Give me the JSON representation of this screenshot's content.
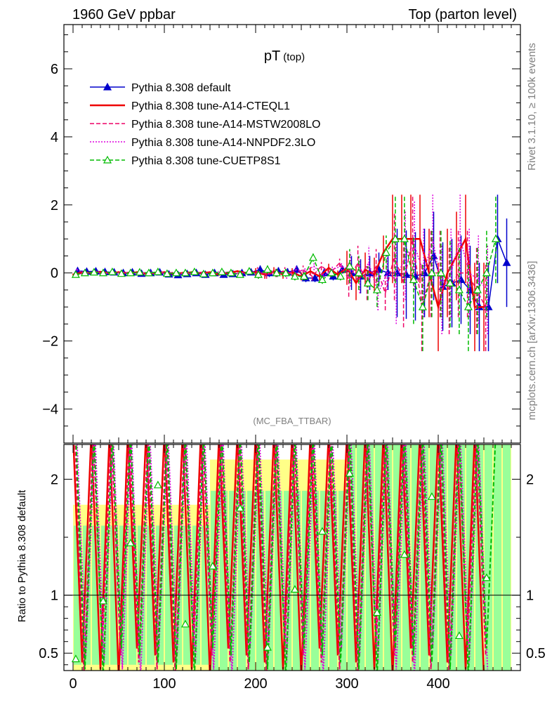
{
  "header": {
    "left": "1960 GeV ppbar",
    "right": "Top (parton level)"
  },
  "side": {
    "rivet": "Rivet 3.1.10, ≥ 100k events",
    "mcplots": "mcplots.cern.ch [arXiv:1306.3436]"
  },
  "chart_data": [
    {
      "type": "line",
      "title": "pT",
      "title_sub": "(top)",
      "watermark": "(MC_FBA_TTBAR)",
      "xlim": [
        -10,
        490
      ],
      "ylim": [
        -5,
        7.3
      ],
      "x_ticks": [
        0,
        100,
        200,
        300,
        400
      ],
      "y_ticks": [
        -4,
        -2,
        0,
        2,
        4,
        6
      ],
      "y_tick_labels": [
        "−4",
        "−2",
        "0",
        "2",
        "4",
        "6"
      ],
      "legend_position": "top-left",
      "series": [
        {
          "name": "Pythia 8.308 default",
          "color": "#0000cc",
          "style": "solid",
          "marker": "filled-triangle",
          "x": [
            5,
            15,
            25,
            35,
            45,
            55,
            65,
            75,
            85,
            95,
            105,
            115,
            125,
            135,
            145,
            155,
            165,
            175,
            185,
            195,
            205,
            215,
            225,
            235,
            245,
            255,
            265,
            275,
            285,
            295,
            305,
            315,
            325,
            335,
            345,
            355,
            365,
            375,
            385,
            395,
            405,
            415,
            425,
            435,
            445,
            455,
            465,
            475
          ],
          "y": [
            0.06,
            0.04,
            0.05,
            0.03,
            0.02,
            0.0,
            0.02,
            -0.02,
            0.0,
            0.02,
            -0.04,
            -0.06,
            -0.03,
            0.0,
            -0.05,
            0.0,
            -0.05,
            -0.03,
            0.0,
            0.02,
            0.1,
            0.0,
            0.05,
            0.02,
            0.1,
            -0.15,
            -0.15,
            0.0,
            -0.1,
            0.1,
            0.0,
            -0.1,
            0.0,
            0.1,
            0.0,
            0.0,
            -0.05,
            -0.1,
            0.0,
            0.5,
            -0.4,
            -0.3,
            -0.2,
            -0.5,
            -1.0,
            -1.0,
            1.0,
            0.3
          ]
        },
        {
          "name": "Pythia 8.308 tune-A14-CTEQL1",
          "color": "#ee0000",
          "style": "solid",
          "marker": "none",
          "x": [
            0,
            10,
            20,
            30,
            40,
            50,
            60,
            70,
            80,
            90,
            100,
            110,
            120,
            130,
            140,
            150,
            160,
            170,
            180,
            190,
            200,
            210,
            220,
            230,
            240,
            250,
            260,
            270,
            280,
            290,
            300,
            310,
            320,
            330,
            340,
            350,
            360,
            370,
            380,
            390,
            400,
            410,
            420,
            430,
            440,
            450
          ],
          "y": [
            -0.05,
            0.02,
            0.0,
            0.03,
            0.0,
            0.02,
            0.0,
            0.02,
            -0.02,
            0.0,
            0.02,
            -0.02,
            0.0,
            0.02,
            0.0,
            0.02,
            -0.05,
            0.0,
            0.05,
            0.0,
            0.02,
            -0.05,
            0.05,
            -0.05,
            0.02,
            -0.1,
            0.05,
            -0.1,
            0.15,
            -0.05,
            0.15,
            -0.3,
            0.1,
            -0.05,
            0.6,
            1.0,
            1.0,
            1.0,
            1.0,
            0.0,
            -1.0,
            0.0,
            0.5,
            1.0,
            -1.0,
            -1.0
          ]
        },
        {
          "name": "Pythia 8.308 tune-A14-MSTW2008LO",
          "color": "#ee0066",
          "style": "dashed",
          "marker": "none",
          "x": [
            2,
            12,
            22,
            32,
            42,
            52,
            62,
            72,
            82,
            92,
            102,
            112,
            122,
            132,
            142,
            152,
            162,
            172,
            182,
            192,
            202,
            212,
            222,
            232,
            242,
            252,
            262,
            272,
            282,
            292,
            302,
            312,
            322,
            332,
            342,
            352,
            362,
            372,
            382,
            392,
            402,
            412,
            422,
            432,
            442,
            452
          ],
          "y": [
            -0.08,
            0.0,
            0.03,
            -0.02,
            0.02,
            0.0,
            -0.02,
            0.02,
            0.0,
            -0.02,
            0.0,
            0.02,
            -0.03,
            0.0,
            0.02,
            -0.03,
            0.0,
            0.03,
            -0.02,
            0.0,
            0.05,
            -0.05,
            0.0,
            0.05,
            -0.05,
            0.1,
            -0.1,
            0.2,
            0.0,
            0.3,
            -0.2,
            0.3,
            -0.3,
            0.2,
            -0.6,
            0.5,
            -0.3,
            1.0,
            -1.0,
            0.0,
            0.0,
            -0.5,
            0.0,
            0.0,
            -0.5,
            -1.0
          ]
        },
        {
          "name": "Pythia 8.308 tune-A14-NNPDF2.3LO",
          "color": "#dd00dd",
          "style": "dotted",
          "marker": "none",
          "x": [
            4,
            14,
            24,
            34,
            44,
            54,
            64,
            74,
            84,
            94,
            104,
            114,
            124,
            134,
            144,
            154,
            164,
            174,
            184,
            194,
            204,
            214,
            224,
            234,
            244,
            254,
            264,
            274,
            284,
            294,
            304,
            314,
            324,
            334,
            344,
            354,
            364,
            374,
            384,
            394,
            404,
            414,
            424,
            434,
            444,
            454
          ],
          "y": [
            0.1,
            -0.02,
            0.05,
            0.0,
            -0.03,
            0.02,
            0.0,
            -0.02,
            0.03,
            0.0,
            0.02,
            -0.03,
            0.0,
            0.03,
            -0.02,
            0.0,
            0.05,
            -0.05,
            0.0,
            0.03,
            -0.03,
            0.08,
            0.0,
            -0.05,
            0.1,
            0.05,
            0.2,
            -0.1,
            0.1,
            0.2,
            0.1,
            -0.1,
            0.3,
            -0.6,
            0.0,
            -0.2,
            0.5,
            0.8,
            0.0,
            1.0,
            -0.5,
            0.0,
            1.0,
            0.0,
            -0.2,
            -0.5
          ]
        },
        {
          "name": "Pythia 8.308 tune-CUETP8S1",
          "color": "#00bb00",
          "style": "dashed",
          "marker": "open-triangle",
          "x": [
            3,
            13,
            23,
            33,
            43,
            53,
            63,
            73,
            83,
            93,
            103,
            113,
            123,
            133,
            143,
            153,
            163,
            173,
            183,
            193,
            203,
            213,
            223,
            233,
            243,
            253,
            263,
            273,
            283,
            293,
            303,
            313,
            323,
            333,
            343,
            353,
            363,
            373,
            383,
            393,
            403,
            413,
            423,
            433,
            443,
            453,
            463
          ],
          "y": [
            -0.05,
            0.0,
            0.02,
            0.0,
            0.03,
            -0.02,
            0.0,
            0.02,
            0.0,
            0.03,
            -0.02,
            0.0,
            0.0,
            0.03,
            -0.03,
            0.0,
            0.03,
            0.0,
            -0.05,
            0.05,
            -0.05,
            0.1,
            0.0,
            0.0,
            -0.1,
            -0.1,
            0.45,
            -0.2,
            0.0,
            -0.1,
            0.2,
            0.0,
            -0.3,
            -0.5,
            0.6,
            1.0,
            1.0,
            -0.2,
            -1.0,
            0.0,
            0.0,
            -0.3,
            -0.5,
            -1.0,
            -0.5,
            0.0,
            1.0
          ]
        }
      ]
    },
    {
      "type": "line",
      "ylabel": "Ratio to Pythia 8.308 default",
      "ylim": [
        0.35,
        2.3
      ],
      "y_ticks": [
        0.5,
        1,
        2
      ],
      "y_tick_labels": [
        "0.5",
        "1",
        "2"
      ],
      "reference_line": 1,
      "band_colors": {
        "inner": "#99ff99",
        "outer": "#ffff88"
      }
    }
  ]
}
